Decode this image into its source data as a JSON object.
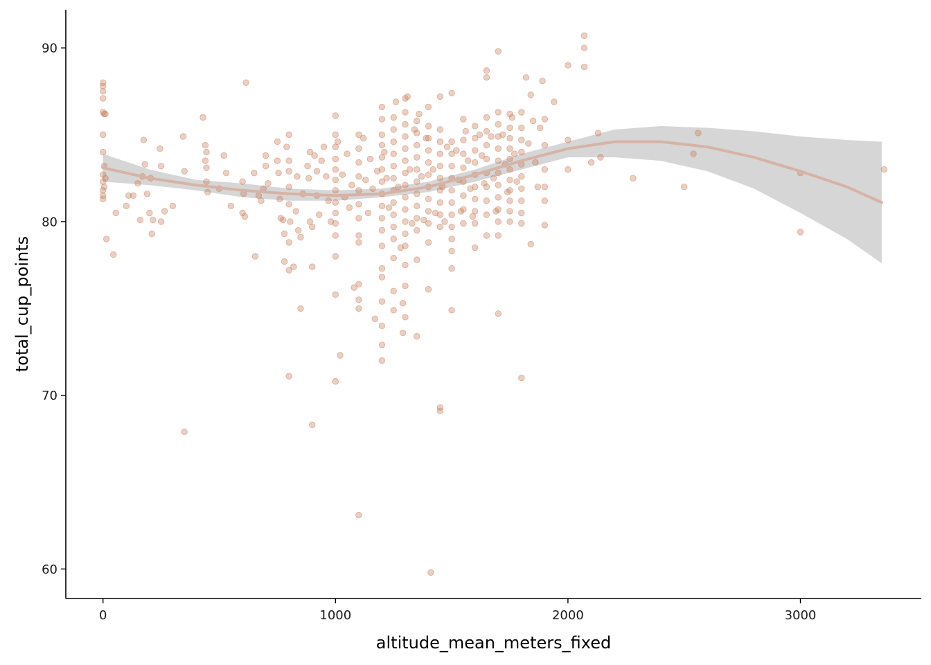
{
  "chart_data": {
    "type": "scatter",
    "title": "",
    "xlabel": "altitude_mean_meters_fixed",
    "ylabel": "total_cup_points",
    "xlim": [
      -160,
      3520
    ],
    "ylim": [
      58.3,
      92.2
    ],
    "x_ticks": [
      0,
      1000,
      2000,
      3000
    ],
    "x_tick_labels": [
      "0",
      "1000",
      "2000",
      "3000"
    ],
    "y_ticks": [
      60,
      70,
      80,
      90
    ],
    "y_tick_labels": [
      "60",
      "70",
      "80",
      "90"
    ],
    "grid": false,
    "legend": "none",
    "colors": {
      "points": "#c8805f",
      "smooth_line": "#d6b3a5",
      "ribbon": "#cfcfcf",
      "axis": "#000000"
    },
    "points": [
      [
        0,
        88.0
      ],
      [
        0,
        87.8
      ],
      [
        0,
        87.5
      ],
      [
        0,
        87.1
      ],
      [
        0,
        86.3
      ],
      [
        5,
        86.2
      ],
      [
        10,
        86.2
      ],
      [
        0,
        85.0
      ],
      [
        0,
        84.0
      ],
      [
        5,
        83.2
      ],
      [
        0,
        82.7
      ],
      [
        0,
        82.3
      ],
      [
        5,
        82.0
      ],
      [
        0,
        81.8
      ],
      [
        0,
        81.5
      ],
      [
        0,
        81.3
      ],
      [
        10,
        82.5
      ],
      [
        15,
        79.0
      ],
      [
        45,
        78.1
      ],
      [
        55,
        80.5
      ],
      [
        100,
        80.9
      ],
      [
        110,
        81.5
      ],
      [
        130,
        81.5
      ],
      [
        150,
        82.2
      ],
      [
        160,
        80.1
      ],
      [
        170,
        82.6
      ],
      [
        180,
        83.3
      ],
      [
        175,
        84.7
      ],
      [
        190,
        81.6
      ],
      [
        200,
        80.5
      ],
      [
        210,
        79.3
      ],
      [
        205,
        82.5
      ],
      [
        215,
        80.1
      ],
      [
        245,
        84.2
      ],
      [
        250,
        83.2
      ],
      [
        250,
        80.0
      ],
      [
        265,
        80.6
      ],
      [
        300,
        80.9
      ],
      [
        345,
        84.9
      ],
      [
        350,
        82.9
      ],
      [
        350,
        67.9
      ],
      [
        430,
        86.0
      ],
      [
        440,
        84.4
      ],
      [
        445,
        84.0
      ],
      [
        440,
        83.5
      ],
      [
        445,
        83.1
      ],
      [
        445,
        82.3
      ],
      [
        450,
        81.7
      ],
      [
        500,
        81.9
      ],
      [
        520,
        83.8
      ],
      [
        530,
        82.8
      ],
      [
        550,
        80.9
      ],
      [
        600,
        82.3
      ],
      [
        605,
        81.6
      ],
      [
        600,
        80.5
      ],
      [
        610,
        80.3
      ],
      [
        615,
        88.0
      ],
      [
        650,
        82.8
      ],
      [
        655,
        78.0
      ],
      [
        670,
        81.5
      ],
      [
        680,
        81.2
      ],
      [
        690,
        81.9
      ],
      [
        700,
        83.2
      ],
      [
        700,
        83.8
      ],
      [
        710,
        82.2
      ],
      [
        750,
        84.6
      ],
      [
        750,
        83.5
      ],
      [
        755,
        82.8
      ],
      [
        760,
        81.3
      ],
      [
        765,
        80.2
      ],
      [
        775,
        80.1
      ],
      [
        780,
        79.3
      ],
      [
        780,
        77.7
      ],
      [
        790,
        84.3
      ],
      [
        800,
        83.5
      ],
      [
        800,
        82.9
      ],
      [
        800,
        82.0
      ],
      [
        800,
        81.0
      ],
      [
        805,
        80.0
      ],
      [
        800,
        78.8
      ],
      [
        800,
        77.2
      ],
      [
        800,
        71.1
      ],
      [
        800,
        85.0
      ],
      [
        820,
        77.4
      ],
      [
        830,
        80.6
      ],
      [
        835,
        82.6
      ],
      [
        840,
        79.5
      ],
      [
        850,
        79.1
      ],
      [
        850,
        75.0
      ],
      [
        860,
        81.6
      ],
      [
        880,
        83.2
      ],
      [
        885,
        82.5
      ],
      [
        890,
        84.0
      ],
      [
        890,
        80.0
      ],
      [
        900,
        79.7
      ],
      [
        900,
        77.4
      ],
      [
        900,
        68.3
      ],
      [
        910,
        83.8
      ],
      [
        920,
        82.9
      ],
      [
        920,
        81.5
      ],
      [
        930,
        80.4
      ],
      [
        940,
        83.5
      ],
      [
        950,
        84.3
      ],
      [
        960,
        82.6
      ],
      [
        970,
        81.2
      ],
      [
        980,
        80.0
      ],
      [
        1000,
        86.1
      ],
      [
        1000,
        85.0
      ],
      [
        1000,
        84.3
      ],
      [
        1000,
        83.6
      ],
      [
        1000,
        83.0
      ],
      [
        1000,
        82.4
      ],
      [
        1000,
        81.8
      ],
      [
        1000,
        81.1
      ],
      [
        1000,
        80.5
      ],
      [
        1000,
        79.9
      ],
      [
        1000,
        79.2
      ],
      [
        1000,
        78.0
      ],
      [
        1000,
        75.8
      ],
      [
        1000,
        70.8
      ],
      [
        1010,
        84.6
      ],
      [
        1020,
        72.3
      ],
      [
        1030,
        82.7
      ],
      [
        1040,
        81.4
      ],
      [
        1050,
        83.9
      ],
      [
        1060,
        80.8
      ],
      [
        1070,
        82.1
      ],
      [
        1080,
        76.2
      ],
      [
        1100,
        85.0
      ],
      [
        1100,
        84.2
      ],
      [
        1100,
        83.4
      ],
      [
        1100,
        82.6
      ],
      [
        1100,
        81.8
      ],
      [
        1100,
        81.0
      ],
      [
        1100,
        80.2
      ],
      [
        1100,
        79.2
      ],
      [
        1100,
        78.8
      ],
      [
        1100,
        76.4
      ],
      [
        1100,
        75.5
      ],
      [
        1100,
        75.0
      ],
      [
        1100,
        63.1
      ],
      [
        1120,
        84.8
      ],
      [
        1130,
        82.4
      ],
      [
        1140,
        80.5
      ],
      [
        1150,
        83.6
      ],
      [
        1160,
        81.9
      ],
      [
        1170,
        74.4
      ],
      [
        1180,
        82.9
      ],
      [
        1200,
        86.6
      ],
      [
        1200,
        85.9
      ],
      [
        1200,
        85.0
      ],
      [
        1200,
        84.4
      ],
      [
        1200,
        83.7
      ],
      [
        1200,
        83.0
      ],
      [
        1200,
        82.3
      ],
      [
        1200,
        81.6
      ],
      [
        1200,
        80.9
      ],
      [
        1200,
        80.2
      ],
      [
        1200,
        79.5
      ],
      [
        1200,
        78.6
      ],
      [
        1200,
        77.3
      ],
      [
        1200,
        76.8
      ],
      [
        1200,
        75.4
      ],
      [
        1200,
        74.0
      ],
      [
        1200,
        72.9
      ],
      [
        1200,
        72.0
      ],
      [
        1210,
        84.0
      ],
      [
        1220,
        82.5
      ],
      [
        1230,
        80.8
      ],
      [
        1250,
        86.0
      ],
      [
        1250,
        85.3
      ],
      [
        1250,
        84.6
      ],
      [
        1250,
        83.9
      ],
      [
        1250,
        83.2
      ],
      [
        1250,
        82.5
      ],
      [
        1250,
        81.8
      ],
      [
        1250,
        81.1
      ],
      [
        1250,
        80.4
      ],
      [
        1250,
        79.7
      ],
      [
        1250,
        79.0
      ],
      [
        1250,
        77.9
      ],
      [
        1250,
        76.0
      ],
      [
        1250,
        74.9
      ],
      [
        1260,
        86.9
      ],
      [
        1270,
        82.0
      ],
      [
        1280,
        78.5
      ],
      [
        1290,
        75.3
      ],
      [
        1290,
        73.6
      ],
      [
        1300,
        87.1
      ],
      [
        1300,
        86.3
      ],
      [
        1300,
        85.6
      ],
      [
        1300,
        84.9
      ],
      [
        1300,
        84.2
      ],
      [
        1300,
        83.5
      ],
      [
        1300,
        82.8
      ],
      [
        1300,
        82.1
      ],
      [
        1300,
        81.4
      ],
      [
        1300,
        80.7
      ],
      [
        1300,
        80.0
      ],
      [
        1300,
        79.3
      ],
      [
        1300,
        78.6
      ],
      [
        1300,
        77.5
      ],
      [
        1300,
        76.3
      ],
      [
        1300,
        74.5
      ],
      [
        1310,
        87.2
      ],
      [
        1320,
        83.0
      ],
      [
        1330,
        79.9
      ],
      [
        1340,
        85.3
      ],
      [
        1350,
        85.8
      ],
      [
        1350,
        85.1
      ],
      [
        1350,
        84.4
      ],
      [
        1350,
        83.7
      ],
      [
        1350,
        83.0
      ],
      [
        1350,
        82.3
      ],
      [
        1350,
        81.6
      ],
      [
        1350,
        80.9
      ],
      [
        1350,
        80.2
      ],
      [
        1350,
        79.5
      ],
      [
        1350,
        77.8
      ],
      [
        1350,
        73.4
      ],
      [
        1360,
        86.2
      ],
      [
        1370,
        82.6
      ],
      [
        1380,
        80.1
      ],
      [
        1390,
        84.8
      ],
      [
        1400,
        86.6
      ],
      [
        1400,
        85.5
      ],
      [
        1400,
        84.8
      ],
      [
        1400,
        84.1
      ],
      [
        1400,
        83.4
      ],
      [
        1400,
        82.7
      ],
      [
        1400,
        82.0
      ],
      [
        1400,
        81.3
      ],
      [
        1400,
        80.6
      ],
      [
        1400,
        79.9
      ],
      [
        1400,
        78.8
      ],
      [
        1400,
        76.1
      ],
      [
        1410,
        59.8
      ],
      [
        1420,
        83.0
      ],
      [
        1430,
        80.5
      ],
      [
        1450,
        87.2
      ],
      [
        1450,
        85.3
      ],
      [
        1450,
        84.6
      ],
      [
        1450,
        83.9
      ],
      [
        1450,
        83.2
      ],
      [
        1450,
        82.5
      ],
      [
        1450,
        81.8
      ],
      [
        1450,
        81.1
      ],
      [
        1450,
        80.4
      ],
      [
        1450,
        79.7
      ],
      [
        1450,
        69.3
      ],
      [
        1450,
        69.1
      ],
      [
        1460,
        82.0
      ],
      [
        1470,
        80.0
      ],
      [
        1480,
        84.3
      ],
      [
        1500,
        87.4
      ],
      [
        1500,
        84.6
      ],
      [
        1500,
        83.9
      ],
      [
        1500,
        83.2
      ],
      [
        1500,
        82.5
      ],
      [
        1500,
        81.8
      ],
      [
        1500,
        81.1
      ],
      [
        1500,
        80.4
      ],
      [
        1500,
        79.7
      ],
      [
        1500,
        79.0
      ],
      [
        1500,
        78.3
      ],
      [
        1500,
        77.3
      ],
      [
        1500,
        74.9
      ],
      [
        1520,
        84.1
      ],
      [
        1530,
        82.4
      ],
      [
        1540,
        80.6
      ],
      [
        1550,
        85.9
      ],
      [
        1550,
        84.7
      ],
      [
        1550,
        83.9
      ],
      [
        1550,
        83.1
      ],
      [
        1550,
        82.3
      ],
      [
        1550,
        81.5
      ],
      [
        1550,
        80.7
      ],
      [
        1550,
        79.9
      ],
      [
        1560,
        85.2
      ],
      [
        1570,
        83.5
      ],
      [
        1580,
        81.9
      ],
      [
        1590,
        80.3
      ],
      [
        1600,
        85.5
      ],
      [
        1600,
        84.8
      ],
      [
        1600,
        84.1
      ],
      [
        1600,
        83.4
      ],
      [
        1600,
        82.7
      ],
      [
        1600,
        82.0
      ],
      [
        1600,
        81.3
      ],
      [
        1600,
        80.6
      ],
      [
        1600,
        79.9
      ],
      [
        1600,
        78.5
      ],
      [
        1620,
        85.0
      ],
      [
        1630,
        83.8
      ],
      [
        1640,
        82.2
      ],
      [
        1650,
        88.7
      ],
      [
        1650,
        88.3
      ],
      [
        1650,
        86.0
      ],
      [
        1650,
        85.2
      ],
      [
        1650,
        84.4
      ],
      [
        1650,
        83.6
      ],
      [
        1650,
        82.8
      ],
      [
        1650,
        82.0
      ],
      [
        1650,
        81.2
      ],
      [
        1650,
        80.4
      ],
      [
        1650,
        79.2
      ],
      [
        1670,
        84.9
      ],
      [
        1680,
        82.5
      ],
      [
        1690,
        80.6
      ],
      [
        1700,
        89.8
      ],
      [
        1700,
        86.3
      ],
      [
        1700,
        85.6
      ],
      [
        1700,
        84.9
      ],
      [
        1700,
        84.2
      ],
      [
        1700,
        83.5
      ],
      [
        1700,
        82.8
      ],
      [
        1700,
        82.1
      ],
      [
        1700,
        81.4
      ],
      [
        1700,
        80.7
      ],
      [
        1700,
        80.0
      ],
      [
        1700,
        79.2
      ],
      [
        1700,
        74.7
      ],
      [
        1720,
        85.0
      ],
      [
        1730,
        83.3
      ],
      [
        1740,
        81.7
      ],
      [
        1750,
        86.2
      ],
      [
        1750,
        85.4
      ],
      [
        1750,
        84.8
      ],
      [
        1750,
        84.2
      ],
      [
        1750,
        83.6
      ],
      [
        1750,
        83.0
      ],
      [
        1750,
        82.4
      ],
      [
        1750,
        81.8
      ],
      [
        1750,
        81.2
      ],
      [
        1750,
        80.6
      ],
      [
        1750,
        80.0
      ],
      [
        1760,
        86.0
      ],
      [
        1770,
        83.9
      ],
      [
        1780,
        82.3
      ],
      [
        1800,
        86.3
      ],
      [
        1800,
        85.4
      ],
      [
        1800,
        84.7
      ],
      [
        1800,
        84.0
      ],
      [
        1800,
        83.3
      ],
      [
        1800,
        82.6
      ],
      [
        1800,
        81.9
      ],
      [
        1800,
        81.2
      ],
      [
        1800,
        80.5
      ],
      [
        1800,
        79.9
      ],
      [
        1800,
        71.0
      ],
      [
        1820,
        88.3
      ],
      [
        1830,
        84.5
      ],
      [
        1840,
        87.3
      ],
      [
        1840,
        78.7
      ],
      [
        1850,
        85.8
      ],
      [
        1860,
        83.4
      ],
      [
        1870,
        82.0
      ],
      [
        1880,
        85.4
      ],
      [
        1890,
        88.1
      ],
      [
        1900,
        85.9
      ],
      [
        1900,
        84.4
      ],
      [
        1900,
        83.0
      ],
      [
        1900,
        82.0
      ],
      [
        1900,
        81.2
      ],
      [
        1900,
        79.8
      ],
      [
        1940,
        86.9
      ],
      [
        2000,
        89.0
      ],
      [
        2000,
        84.7
      ],
      [
        2000,
        83.0
      ],
      [
        2070,
        90.7
      ],
      [
        2070,
        90.0
      ],
      [
        2070,
        88.9
      ],
      [
        2100,
        83.4
      ],
      [
        2130,
        85.1
      ],
      [
        2140,
        83.7
      ],
      [
        2280,
        82.5
      ],
      [
        2500,
        82.0
      ],
      [
        2540,
        83.9
      ],
      [
        2560,
        85.1
      ],
      [
        3000,
        82.8
      ],
      [
        3000,
        79.4
      ],
      [
        3360,
        83.0
      ]
    ],
    "smooth_curve": {
      "x": [
        0,
        200,
        400,
        600,
        800,
        1000,
        1200,
        1400,
        1600,
        1800,
        2000,
        2200,
        2400,
        2600,
        2800,
        3000,
        3200,
        3350
      ],
      "y": [
        83.1,
        82.5,
        82.1,
        81.8,
        81.6,
        81.5,
        81.6,
        82.0,
        82.7,
        83.5,
        84.2,
        84.6,
        84.6,
        84.3,
        83.7,
        82.9,
        82.0,
        81.1
      ],
      "lower": [
        82.3,
        82.1,
        81.8,
        81.4,
        81.2,
        81.2,
        81.4,
        81.7,
        82.3,
        83.0,
        83.7,
        83.7,
        83.5,
        82.9,
        81.9,
        80.5,
        79.0,
        77.6
      ],
      "upper": [
        83.9,
        83.0,
        82.4,
        82.2,
        81.9,
        81.8,
        81.9,
        82.3,
        83.0,
        83.9,
        84.6,
        85.3,
        85.5,
        85.4,
        85.2,
        84.9,
        84.7,
        84.6
      ]
    }
  }
}
